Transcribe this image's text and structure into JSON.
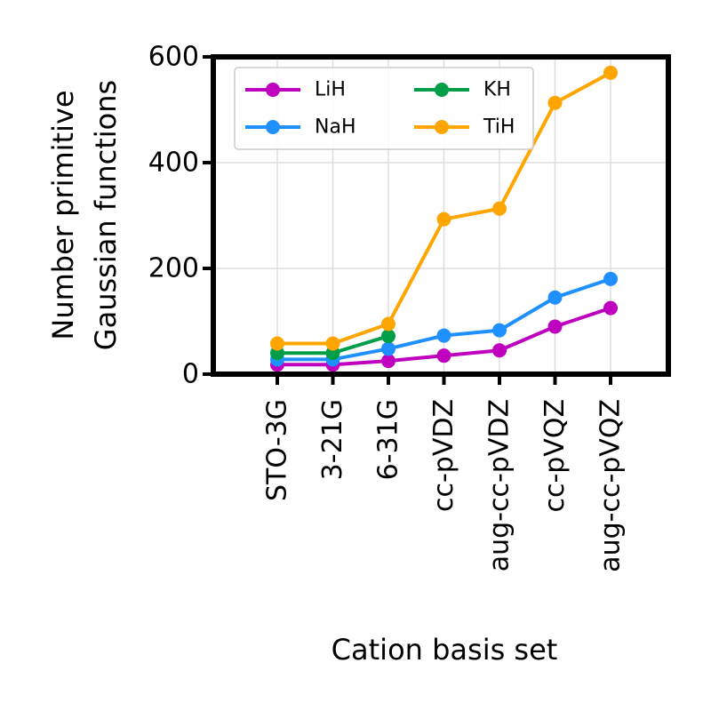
{
  "chart_data": {
    "type": "line",
    "xlabel": "Cation basis set",
    "ylabel_lines": [
      "Number primitive",
      "Gaussian functions"
    ],
    "categories": [
      "STO-3G",
      "3-21G",
      "6-31G",
      "cc-pVDZ",
      "aug-cc-pVDZ",
      "cc-pVQZ",
      "aug-cc-pVQZ"
    ],
    "ylim": [
      0,
      600
    ],
    "yticks": [
      0,
      200,
      400,
      600
    ],
    "grid": true,
    "legend_position": "top-left",
    "series": [
      {
        "name": "LiH",
        "color": "#bf00bf",
        "values": [
          18,
          18,
          25,
          35,
          45,
          90,
          125
        ]
      },
      {
        "name": "NaH",
        "color": "#1e90ff",
        "values": [
          28,
          28,
          48,
          73,
          83,
          145,
          180
        ]
      },
      {
        "name": "KH",
        "color": "#009e49",
        "values": [
          40,
          40,
          72,
          null,
          null,
          null,
          null
        ]
      },
      {
        "name": "TiH",
        "color": "#ffa500",
        "values": [
          58,
          58,
          95,
          293,
          313,
          513,
          570
        ]
      }
    ]
  }
}
